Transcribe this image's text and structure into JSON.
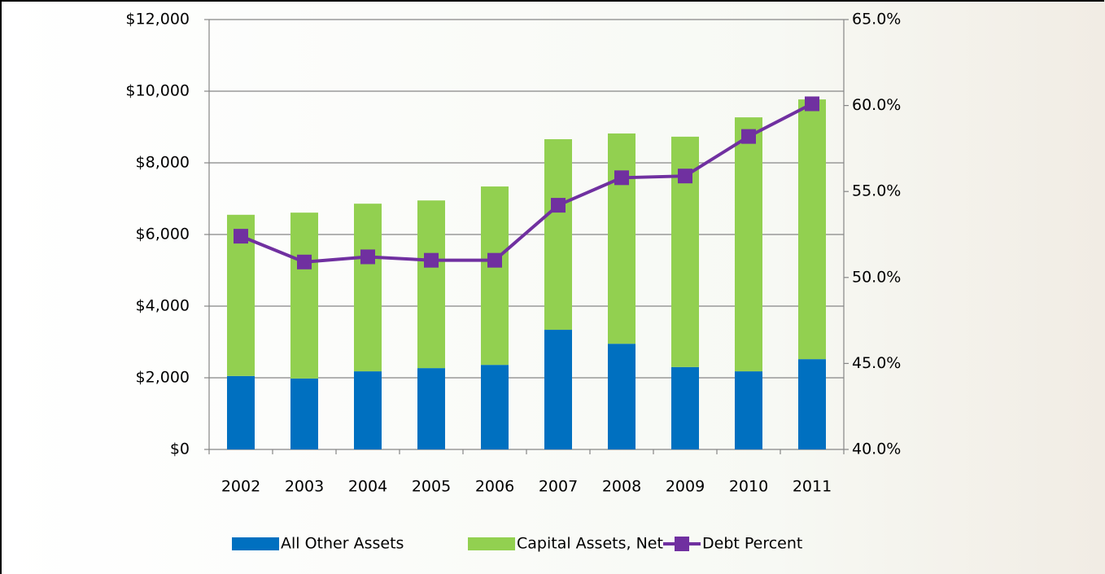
{
  "chart_data": {
    "type": "bar",
    "categories": [
      "2002",
      "2003",
      "2004",
      "2005",
      "2006",
      "2007",
      "2008",
      "2009",
      "2010",
      "2011"
    ],
    "series": [
      {
        "name": "All Other Assets",
        "color": "#0070c0",
        "values": [
          2050,
          1980,
          2180,
          2270,
          2360,
          3340,
          2950,
          2300,
          2180,
          2520
        ]
      },
      {
        "name": "Capital Assets, Net",
        "color": "#92d050",
        "values": [
          4500,
          4630,
          4680,
          4680,
          4980,
          5320,
          5870,
          6430,
          7090,
          7250
        ]
      },
      {
        "name": "Debt Percent",
        "color": "#7030a0",
        "axis": "y2",
        "values": [
          52.4,
          50.9,
          51.2,
          51.0,
          51.0,
          54.2,
          55.8,
          55.9,
          58.2,
          60.1
        ]
      }
    ],
    "ylim": [
      0,
      12000
    ],
    "yticks": [
      {
        "value": 0,
        "label": "$0"
      },
      {
        "value": 2000,
        "label": "$2,000"
      },
      {
        "value": 4000,
        "label": "$4,000"
      },
      {
        "value": 6000,
        "label": "$6,000"
      },
      {
        "value": 8000,
        "label": "$8,000"
      },
      {
        "value": 10000,
        "label": "$10,000"
      },
      {
        "value": 12000,
        "label": "$12,000"
      }
    ],
    "y2lim": [
      40,
      65
    ],
    "y2ticks": [
      {
        "value": 40,
        "label": "40.0%"
      },
      {
        "value": 45,
        "label": "45.0%"
      },
      {
        "value": 50,
        "label": "50.0%"
      },
      {
        "value": 55,
        "label": "55.0%"
      },
      {
        "value": 60,
        "label": "60.0%"
      },
      {
        "value": 65,
        "label": "65.0%"
      }
    ],
    "grid": true,
    "legend": "bottom"
  }
}
